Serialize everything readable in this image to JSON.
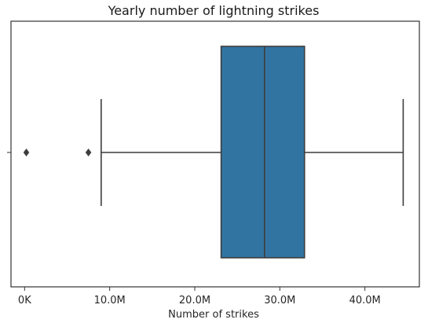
{
  "chart_data": {
    "type": "box",
    "orientation": "horizontal",
    "title": "Yearly number of lightning strikes",
    "xlabel": "Number of strikes",
    "ylabel": "",
    "xlim": [
      -1.6,
      46.4
    ],
    "x_unit": "M",
    "xticks": [
      0,
      10,
      20,
      30,
      40
    ],
    "xtick_labels": [
      "0K",
      "10.0M",
      "20.0M",
      "30.0M",
      "40.0M"
    ],
    "grid": false,
    "box": {
      "whisker_low": 9.0,
      "q1": 23.1,
      "median": 28.2,
      "q3": 32.9,
      "whisker_high": 44.5,
      "outliers": [
        0.2,
        7.5
      ]
    },
    "colors": {
      "box_fill": "#3274a1",
      "lines": "#3d3d3d",
      "background": "#ffffff"
    }
  }
}
